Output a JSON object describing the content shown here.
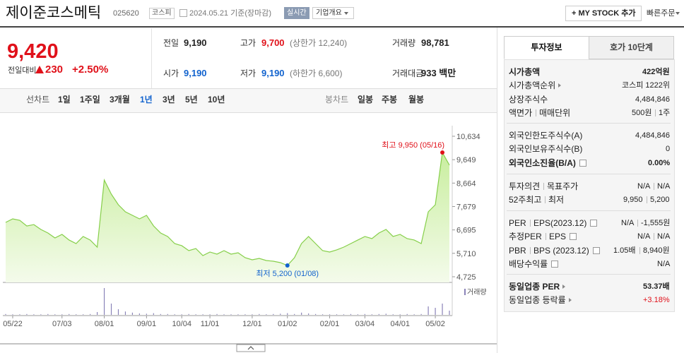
{
  "header": {
    "name": "제이준코스메틱",
    "code": "025620",
    "market": "코스피",
    "date": "2024.05.21 기준(장마감)",
    "realtime": "실시간",
    "company_info": "기업개요",
    "my_stock": "+ MY STOCK 추가",
    "quick_order": "빠른주문"
  },
  "price": {
    "price": "9,420",
    "change_label": "전일대비",
    "change": "230",
    "change_pct": "+2.50%",
    "color": "#e0111a"
  },
  "quote": {
    "rows": [
      [
        {
          "label": "전일",
          "value": "9,190"
        },
        {
          "label": "고가",
          "value": "9,700",
          "extra": "(상한가 12,240)",
          "color": "#e0111a"
        },
        {
          "label": "거래량",
          "value": "98,781"
        }
      ],
      [
        {
          "label": "시가",
          "value": "9,190",
          "color": "#1263ce"
        },
        {
          "label": "저가",
          "value": "9,190",
          "extra": "(하한가 6,600)",
          "color": "#1263ce"
        },
        {
          "label": "거래대금",
          "value": "933 백만"
        }
      ]
    ]
  },
  "tabs": {
    "line_label": "선차트",
    "line_periods": [
      "1일",
      "1주일",
      "3개월",
      "1년",
      "3년",
      "5년",
      "10년"
    ],
    "selected": 3,
    "candle_label": "봉차트",
    "candle_periods": [
      "일봉",
      "주봉",
      "월봉"
    ]
  },
  "aside": {
    "tabs": [
      "투자정보",
      "호가 10단계"
    ],
    "selected": 0,
    "sections": [
      [
        {
          "labels": [
            "시가총액"
          ],
          "values": [
            "422억원"
          ],
          "bold": true
        },
        {
          "labels": [
            "시가총액순위"
          ],
          "arrow": true,
          "values": [
            "코스피 1222위"
          ]
        },
        {
          "labels": [
            "상장주식수"
          ],
          "values": [
            "4,484,846"
          ]
        },
        {
          "labels": [
            "액면가",
            "매매단위"
          ],
          "values": [
            "500원",
            "1주"
          ]
        }
      ],
      [
        {
          "labels": [
            "외국인한도주식수(A)"
          ],
          "values": [
            "4,484,846"
          ]
        },
        {
          "labels": [
            "외국인보유주식수(B)"
          ],
          "values": [
            "0"
          ]
        },
        {
          "labels": [
            "외국인소진율(B/A)"
          ],
          "help": true,
          "values": [
            "0.00%"
          ],
          "bold": true
        }
      ],
      [
        {
          "labels": [
            "투자의견",
            "목표주가"
          ],
          "values": [
            "N/A",
            "N/A"
          ]
        },
        {
          "labels": [
            "52주최고",
            "최저"
          ],
          "values": [
            "9,950",
            "5,200"
          ]
        }
      ],
      [
        {
          "labels": [
            "PER",
            "EPS(2023.12)"
          ],
          "help": true,
          "values": [
            "N/A",
            "-1,555원"
          ]
        },
        {
          "labels": [
            "추정PER",
            "EPS"
          ],
          "help": true,
          "values": [
            "N/A",
            "N/A"
          ]
        },
        {
          "labels": [
            "PBR",
            "BPS (2023.12)"
          ],
          "help": true,
          "values": [
            "1.05배",
            "8,940원"
          ]
        },
        {
          "labels": [
            "배당수익률"
          ],
          "help": true,
          "values": [
            "N/A"
          ]
        }
      ],
      [
        {
          "labels": [
            "동일업종 PER"
          ],
          "arrow": true,
          "values": [
            "53.37배"
          ],
          "bold": true
        },
        {
          "labels": [
            "동일업종 등락률"
          ],
          "arrow": true,
          "values": [
            "+3.18%"
          ],
          "value_color": "#e0111a"
        }
      ]
    ]
  },
  "chart_data": {
    "type": "line",
    "color": "#86cf4a",
    "categories": [
      null,
      "05/22",
      null,
      null,
      null,
      null,
      null,
      null,
      "07/03",
      null,
      null,
      null,
      null,
      null,
      "08/01",
      null,
      null,
      null,
      null,
      null,
      "09/01",
      null,
      null,
      null,
      null,
      "10/04",
      null,
      null,
      null,
      "11/01",
      null,
      null,
      null,
      null,
      null,
      "12/01",
      null,
      null,
      null,
      null,
      "01/02",
      null,
      null,
      null,
      null,
      null,
      "02/01",
      null,
      null,
      null,
      null,
      "03/04",
      null,
      null,
      null,
      null,
      "04/01",
      null,
      null,
      null,
      null,
      "05/02",
      null,
      null
    ],
    "values": [
      7012,
      7160,
      7100,
      6860,
      6920,
      6715,
      6566,
      6358,
      6507,
      6270,
      6121,
      6418,
      6270,
      5972,
      8793,
      8200,
      7754,
      7457,
      7309,
      7160,
      7309,
      6863,
      6566,
      6418,
      6121,
      6032,
      5824,
      5913,
      5616,
      5765,
      5676,
      5824,
      5676,
      5735,
      5527,
      5438,
      5497,
      5408,
      5378,
      5319,
      5200,
      5527,
      6121,
      6418,
      6121,
      5824,
      5765,
      5854,
      5972,
      6121,
      6270,
      6418,
      6329,
      6566,
      6715,
      6418,
      6507,
      6329,
      6270,
      6121,
      7457,
      7754,
      9950,
      9420
    ],
    "ylim": [
      4725,
      10634
    ],
    "yticks": [
      {
        "value": 4725,
        "label": "4,725"
      },
      {
        "value": 5710,
        "label": "5,710"
      },
      {
        "value": 6695,
        "label": "6,695"
      },
      {
        "value": 7679,
        "label": "7,679"
      },
      {
        "value": 8664,
        "label": "8,664"
      },
      {
        "value": 9649,
        "label": "9,649"
      },
      {
        "value": 10634,
        "label": "10,634"
      }
    ],
    "high_label": "최고 9,950 (05/16)",
    "high_color": "#e0111a",
    "low_label": "최저 5,200 (01/08)",
    "low_color": "#1263ce",
    "volume": {
      "name": "거래량",
      "color": "#8a83b8",
      "values": [
        3,
        2,
        2,
        3,
        2,
        2,
        3,
        2,
        2,
        3,
        2,
        2,
        3,
        10,
        95,
        40,
        20,
        12,
        8,
        5,
        4,
        6,
        3,
        3,
        2,
        2,
        3,
        2,
        2,
        2,
        3,
        2,
        2,
        2,
        2,
        2,
        3,
        2,
        3,
        4,
        6,
        3,
        8,
        5,
        3,
        2,
        2,
        2,
        2,
        3,
        2,
        3,
        2,
        3,
        4,
        2,
        2,
        3,
        2,
        3,
        30,
        25,
        40,
        15
      ]
    }
  }
}
